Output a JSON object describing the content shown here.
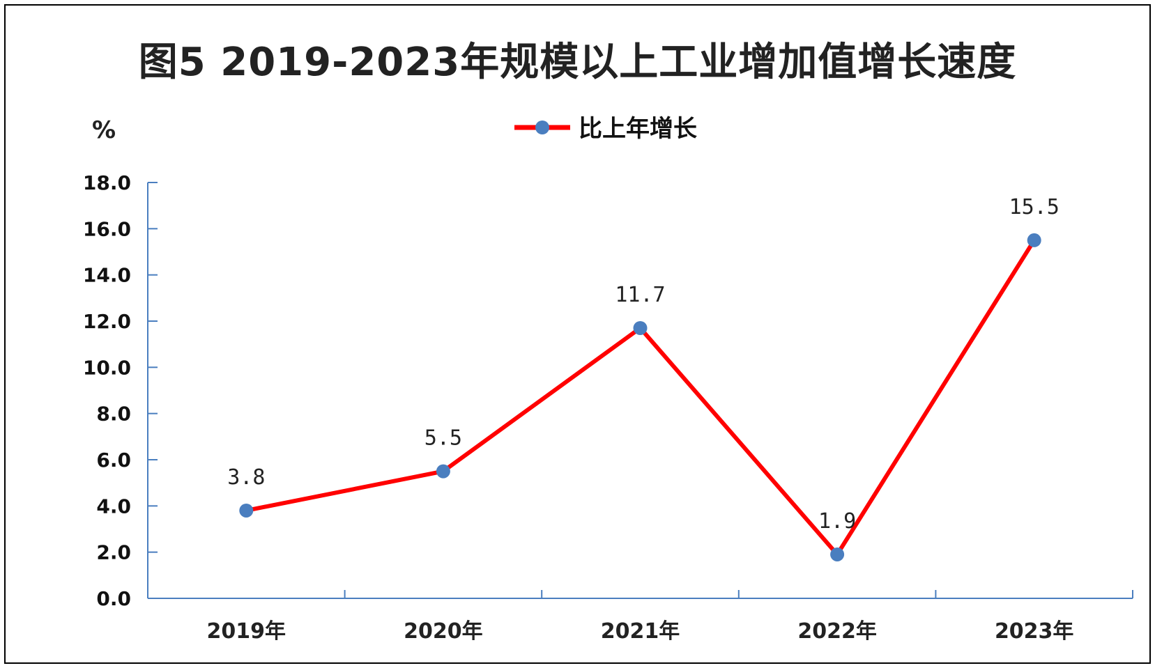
{
  "chart_data": {
    "type": "line",
    "title": "图5 2019-2023年规模以上工业增加值增长速度",
    "ylabel": "%",
    "categories": [
      "2019年",
      "2020年",
      "2021年",
      "2022年",
      "2023年"
    ],
    "series": [
      {
        "name": "比上年增长",
        "values": [
          3.8,
          5.5,
          11.7,
          1.9,
          15.5
        ],
        "data_labels": [
          "3.8",
          "5.5",
          "11.7",
          "1.9",
          "15.5"
        ]
      }
    ],
    "y_ticks": [
      "0.0",
      "2.0",
      "4.0",
      "6.0",
      "8.0",
      "10.0",
      "12.0",
      "14.0",
      "16.0",
      "18.0"
    ],
    "ylim": [
      0,
      18
    ],
    "grid": false,
    "legend_position": "top-center",
    "colors": {
      "line": "#ff0000",
      "marker": "#4a7ebf",
      "axis": "#4a7ebf"
    }
  }
}
